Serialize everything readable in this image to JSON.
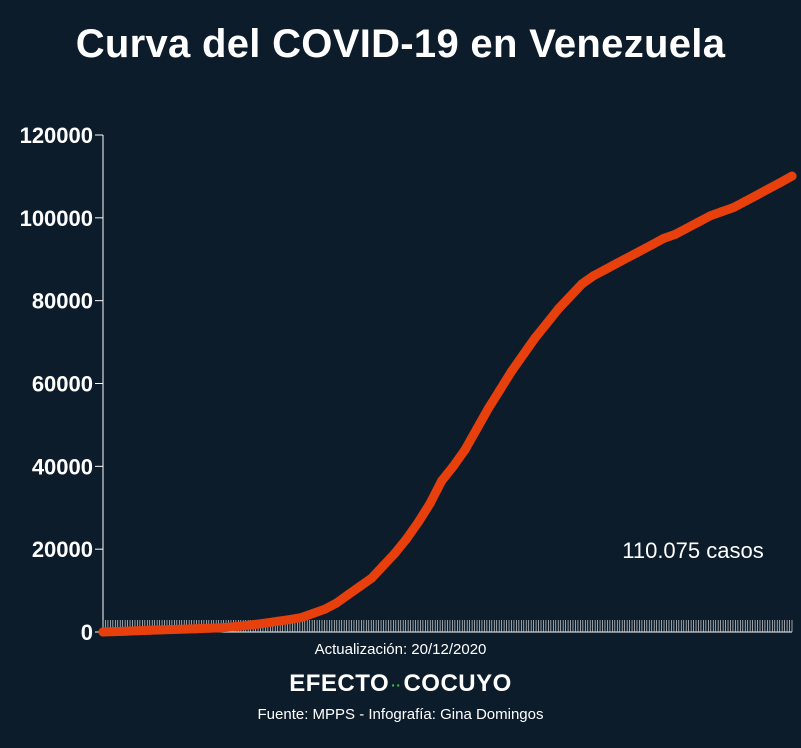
{
  "chart_data": {
    "type": "line",
    "title": "Curva del COVID-19 en Venezuela",
    "xlabel": "",
    "ylabel": "",
    "ylim": [
      0,
      120000
    ],
    "yticks": [
      "0",
      "20000",
      "40000",
      "60000",
      "80000",
      "100000",
      "120000"
    ],
    "grid": false,
    "series_color": "#e8400c",
    "series": [
      {
        "values": [
          0,
          100,
          200,
          300,
          400,
          500,
          600,
          700,
          800,
          900,
          1000,
          1200,
          1500,
          1800,
          2200,
          2600,
          3000,
          3500,
          4500,
          5500,
          7000,
          9000,
          11000,
          13000,
          16000,
          19000,
          22500,
          26500,
          31000,
          36500,
          40000,
          44000,
          49000,
          54000,
          58500,
          63000,
          67000,
          71000,
          74500,
          78000,
          81000,
          84000,
          86000,
          87500,
          89000,
          90500,
          92000,
          93500,
          95000,
          96000,
          97500,
          99000,
          100500,
          101500,
          102500,
          104000,
          105500,
          107000,
          108500,
          110075
        ]
      }
    ],
    "annotation": "110.075 casos"
  },
  "footer": {
    "update": "Actualización: 20/12/2020",
    "brand_left": "EFECTO",
    "brand_dots": "··",
    "brand_right": "COCUYO",
    "source": "Fuente: MPPS - Infografía: Gina Domingos"
  }
}
